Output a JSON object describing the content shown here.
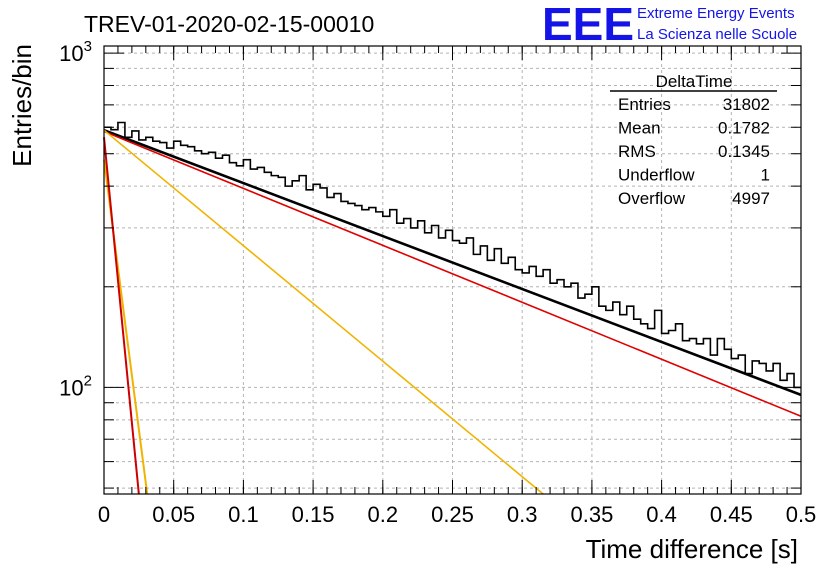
{
  "header": {
    "title": "TREV-01-2020-02-15-00010",
    "logo_text": "EEE",
    "logo_line1": "Extreme Energy Events",
    "logo_line2": "La Scienza nelle Scuole"
  },
  "stats_box": {
    "name": "DeltaTime",
    "rows": [
      {
        "label": "Entries",
        "value": "31802"
      },
      {
        "label": "Mean",
        "value": "0.1782"
      },
      {
        "label": "RMS",
        "value": "0.1345"
      },
      {
        "label": "Underflow",
        "value": "1"
      },
      {
        "label": "Overflow",
        "value": "4997"
      }
    ]
  },
  "chart_data": {
    "type": "line",
    "xlabel": "Time difference [s]",
    "ylabel": "Entries/bin",
    "xlim": [
      0,
      0.5
    ],
    "ylim": [
      48,
      1050
    ],
    "yscale": "log",
    "grid": true,
    "x_ticks": [
      "0",
      "0.05",
      "0.1",
      "0.15",
      "0.2",
      "0.25",
      "0.3",
      "0.35",
      "0.4",
      "0.45",
      "0.5"
    ],
    "y_ticks": [
      {
        "base": "10",
        "exp": "2",
        "value": 100
      },
      {
        "base": "10",
        "exp": "3",
        "value": 1000
      }
    ],
    "colors": {
      "histogram": "#000000",
      "total_fit": "#000000",
      "slow_component": "#e00000",
      "fast_component": "#cc0000",
      "fast_total": "#f0b400",
      "slow_total": "#f0b400"
    },
    "histogram": {
      "bin_width": 0.005,
      "x_start": 0,
      "values": [
        600,
        590,
        620,
        560,
        585,
        550,
        560,
        545,
        540,
        520,
        545,
        530,
        525,
        510,
        500,
        505,
        485,
        495,
        470,
        460,
        480,
        450,
        455,
        440,
        430,
        425,
        400,
        415,
        430,
        390,
        405,
        395,
        370,
        380,
        360,
        355,
        350,
        340,
        345,
        335,
        325,
        340,
        310,
        320,
        300,
        315,
        290,
        305,
        280,
        295,
        275,
        270,
        280,
        250,
        265,
        240,
        260,
        235,
        245,
        225,
        220,
        230,
        215,
        225,
        205,
        210,
        200,
        205,
        185,
        190,
        200,
        175,
        170,
        180,
        165,
        175,
        160,
        155,
        150,
        170,
        145,
        148,
        155,
        138,
        140,
        135,
        140,
        125,
        140,
        130,
        122,
        125,
        110,
        120,
        118,
        112,
        118,
        105,
        110,
        100
      ]
    },
    "series": [
      {
        "kind": "total_fit",
        "values": [
          {
            "x": 0,
            "y": 588
          },
          {
            "x": 0.5,
            "y": 95
          }
        ]
      },
      {
        "kind": "slow_component",
        "values": [
          {
            "x": 0,
            "y": 583
          },
          {
            "x": 0.5,
            "y": 82
          }
        ]
      },
      {
        "kind": "slow_total",
        "values": [
          {
            "x": 0,
            "y": 588
          },
          {
            "x": 0.315,
            "y": 48
          }
        ]
      },
      {
        "kind": "fast_total",
        "values": [
          {
            "x": 0,
            "y": 480
          },
          {
            "x": 0.031,
            "y": 48
          }
        ]
      },
      {
        "kind": "fast_component",
        "values": [
          {
            "x": 0,
            "y": 560
          },
          {
            "x": 0.025,
            "y": 48
          }
        ]
      }
    ]
  }
}
